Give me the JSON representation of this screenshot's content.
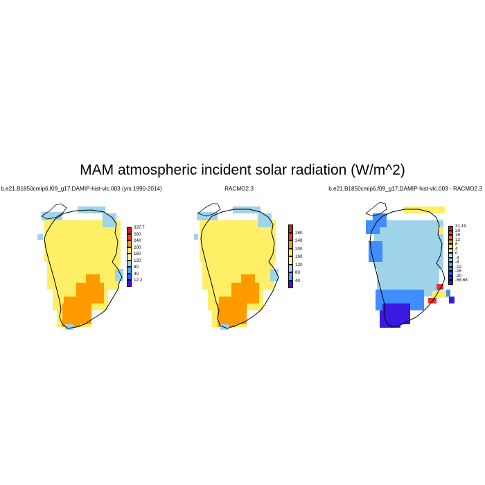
{
  "figure": {
    "title": "MAM atmospheric incident solar radiation (W/m^2)"
  },
  "panels": [
    {
      "title": "b.e21.B1850cmip6.f09_g17.DAMIP-hist-vlc.003 (yrs 1990-2014)",
      "colorbar": {
        "labels": [
          "337.7",
          "280",
          "240",
          "200",
          "160",
          "120",
          "80",
          "40",
          "12.2"
        ],
        "colors": [
          "#d7191c",
          "#f03b1f",
          "#ff9a00",
          "#ffe866",
          "#fff08a",
          "#9fd3ea",
          "#3fa5ff",
          "#2266ff",
          "#5b00ff"
        ]
      },
      "map": {
        "fill_classes": [
          "yellow",
          "orange",
          "lightblue"
        ]
      }
    },
    {
      "title": "RACMO2.3",
      "colorbar": {
        "labels": [
          "280",
          "240",
          "200",
          "160",
          "120",
          "80",
          "40"
        ],
        "colors": [
          "#d7191c",
          "#f03b1f",
          "#ff9a00",
          "#ffe866",
          "#fff08a",
          "#9fd3ea",
          "#3fa5ff",
          "#5b00ff"
        ]
      },
      "map": {
        "fill_classes": [
          "yellow",
          "orange",
          "lightblue"
        ]
      }
    },
    {
      "title": "b.e21.B1850cmip6.f09_g17.DAMIP-hist-vlc.003 - RACMO2.3",
      "colorbar": {
        "labels": [
          "31.19",
          "20",
          "16",
          "12",
          "8",
          "4",
          "0",
          "-4",
          "-8",
          "-12",
          "-16",
          "-20",
          "-58.68"
        ],
        "colors": [
          "#d7191c",
          "#f03b1f",
          "#ff6a00",
          "#ff9a00",
          "#ffd700",
          "#fff08a",
          "#a8daf0",
          "#7cc6ef",
          "#4aa8ff",
          "#2b7bff",
          "#1f4cff",
          "#2a22d8",
          "#5b00ff"
        ]
      },
      "map": {
        "fill_classes": [
          "lightblue",
          "blue",
          "darkblue",
          "yellow",
          "red"
        ]
      }
    }
  ]
}
